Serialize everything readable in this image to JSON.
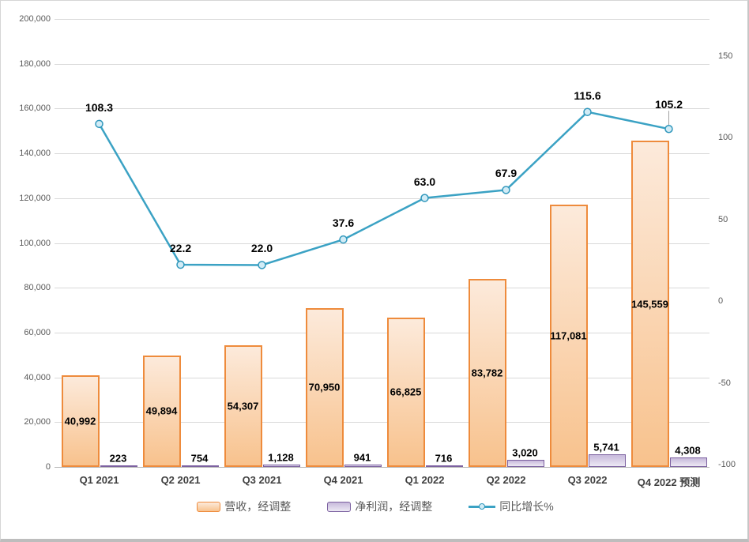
{
  "chart_data": {
    "type": "combo-bar-line",
    "title": "",
    "categories": [
      "Q1 2021",
      "Q2 2021",
      "Q3 2021",
      "Q4 2021",
      "Q1 2022",
      "Q2 2022",
      "Q3 2022",
      "Q4 2022 预测"
    ],
    "series": [
      {
        "name": "营收，经调整",
        "type": "bar",
        "axis": "left",
        "values": [
          40992,
          49894,
          54307,
          70950,
          66825,
          83782,
          117081,
          145559
        ],
        "labels": [
          "40,992",
          "49,894",
          "54,307",
          "70,950",
          "66,825",
          "83,782",
          "117,081",
          "145,559"
        ]
      },
      {
        "name": "净利润，经调整",
        "type": "bar",
        "axis": "left",
        "values": [
          223,
          754,
          1128,
          941,
          716,
          3020,
          5741,
          4308
        ],
        "labels": [
          "223",
          "754",
          "1,128",
          "941",
          "716",
          "3,020",
          "5,741",
          "4,308"
        ]
      },
      {
        "name": "同比增长%",
        "type": "line",
        "axis": "right",
        "values": [
          108.3,
          22.2,
          22.0,
          37.6,
          63.0,
          67.9,
          115.6,
          105.2
        ],
        "labels": [
          "108.3",
          "22.2",
          "22.0",
          "37.6",
          "63.0",
          "67.9",
          "115.6",
          "105.2"
        ],
        "label_leader_index": 7
      }
    ],
    "left_axis": {
      "min": 0,
      "max": 200000,
      "step": 20000,
      "tick_labels": [
        "200,000",
        "180,000",
        "160,000",
        "140,000",
        "120,000",
        "100,000",
        "80,000",
        "60,000",
        "40,000",
        "20,000",
        "0"
      ]
    },
    "right_axis": {
      "ticks": [
        {
          "label": "150",
          "value": 150
        },
        {
          "label": "100",
          "value": 100
        },
        {
          "label": "50",
          "value": 50
        },
        {
          "label": "0",
          "value": 0
        },
        {
          "label": "-50",
          "value": -50
        },
        {
          "label": "-100",
          "value": -100
        }
      ]
    },
    "legend_position": "bottom",
    "grid": true,
    "colors": {
      "revenue_border": "#ee8b3c",
      "revenue_fill_top": "#fceadb",
      "revenue_fill_bottom": "#f8c28d",
      "profit_border": "#7c61a0",
      "profit_fill_top": "#c7b9db",
      "profit_fill_bottom": "#ede9f4",
      "line": "#3ba2c4",
      "marker_fill": "#d2ecf6",
      "marker_border": "#3097bc",
      "gridline": "#d9d9d9",
      "axis_text": "#595959",
      "value_label_text": "#000000"
    }
  }
}
